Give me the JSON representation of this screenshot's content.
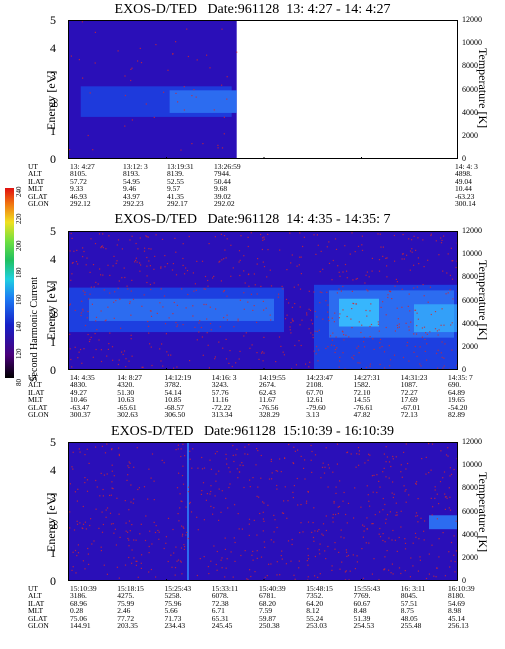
{
  "chart_data": [
    {
      "type": "heatmap",
      "title": "EXOS-D/TED   Date:961128  13: 4:27 - 14: 4:27",
      "ylabel": "Energy [eV]",
      "y2label": "Temperature [K]",
      "ylim": [
        0,
        5
      ],
      "y2lim": [
        0,
        12000
      ],
      "yticks": [
        "0",
        "1",
        "2",
        "3",
        "4",
        "5"
      ],
      "y2ticks": [
        "0",
        "2000",
        "4000",
        "6000",
        "8000",
        "10000",
        "12000"
      ],
      "data_extent_fraction": 0.43,
      "band": {
        "energy_center_eV": 2.1,
        "energy_halfwidth_eV": 0.55
      },
      "table": {
        "row_labels": [
          "UT",
          "ALT",
          "ILAT",
          "MLT",
          "GLAT",
          "GLON"
        ],
        "columns": [
          {
            "UT": "13: 4:27",
            "ALT": "8105.",
            "ILAT": "57.72",
            "MLT": "9.33",
            "GLAT": "46.93",
            "GLON": "292.12"
          },
          {
            "UT": "13:12: 3",
            "ALT": "8193.",
            "ILAT": "54.95",
            "MLT": "9.46",
            "GLAT": "43.97",
            "GLON": "292.23"
          },
          {
            "UT": "13:19:31",
            "ALT": "8139.",
            "ILAT": "52.55",
            "MLT": "9.57",
            "GLAT": "41.35",
            "GLON": "292.17"
          },
          {
            "UT": "13:26:59",
            "ALT": "7944.",
            "ILAT": "50.44",
            "MLT": "9.68",
            "GLAT": "39.02",
            "GLON": "292.02"
          },
          {
            "UT": "14: 4: 3",
            "ALT": "4898.",
            "ILAT": "49.04",
            "MLT": "10.44",
            "GLAT": "-63.23",
            "GLON": "300.14"
          }
        ]
      }
    },
    {
      "type": "heatmap",
      "title": "EXOS-D/TED   Date:961128  14: 4:35 - 14:35: 7",
      "ylabel": "Energy [eV]",
      "y2label": "Temperature [K]",
      "ylim": [
        0,
        5
      ],
      "y2lim": [
        0,
        12000
      ],
      "yticks": [
        "0",
        "1",
        "2",
        "3",
        "4",
        "5"
      ],
      "y2ticks": [
        "0",
        "2000",
        "4000",
        "6000",
        "8000",
        "10000",
        "12000"
      ],
      "colorbar": {
        "label": "Second Harmonic Current",
        "ticks": [
          "80",
          "120",
          "140",
          "160",
          "180",
          "200",
          "220",
          "240"
        ]
      },
      "table": {
        "row_labels": [
          "UT",
          "ALT",
          "ILAT",
          "MLT",
          "GLAT",
          "GLON"
        ],
        "columns": [
          {
            "UT": "14: 4:35",
            "ALT": "4830.",
            "ILAT": "49.27",
            "MLT": "10.46",
            "GLAT": "-63.47",
            "GLON": "300.37"
          },
          {
            "UT": "14: 8:27",
            "ALT": "4320.",
            "ILAT": "51.30",
            "MLT": "10.63",
            "GLAT": "-65.61",
            "GLON": "302.63"
          },
          {
            "UT": "14:12:19",
            "ALT": "3782.",
            "ILAT": "54.14",
            "MLT": "10.85",
            "GLAT": "-68.57",
            "GLON": "306.50"
          },
          {
            "UT": "14:16: 3",
            "ALT": "3243.",
            "ILAT": "57.76",
            "MLT": "11.16",
            "GLAT": "-72.22",
            "GLON": "313.34"
          },
          {
            "UT": "14:19:55",
            "ALT": "2674.",
            "ILAT": "62.43",
            "MLT": "11.67",
            "GLAT": "-76.56",
            "GLON": "328.29"
          },
          {
            "UT": "14:23:47",
            "ALT": "2108.",
            "ILAT": "67.70",
            "MLT": "12.61",
            "GLAT": "-79.60",
            "GLON": "3.13"
          },
          {
            "UT": "14:27:31",
            "ALT": "1582.",
            "ILAT": "72.10",
            "MLT": "14.55",
            "GLAT": "-76.61",
            "GLON": "47.82"
          },
          {
            "UT": "14:31:23",
            "ALT": "1087.",
            "ILAT": "72.27",
            "MLT": "17.69",
            "GLAT": "-67.01",
            "GLON": "72.13"
          },
          {
            "UT": "14:35: 7",
            "ALT": "690.",
            "ILAT": "64.89",
            "MLT": "19.65",
            "GLAT": "-54.20",
            "GLON": "82.89"
          }
        ]
      }
    },
    {
      "type": "heatmap",
      "title": "EXOS-D/TED   Date:961128  15:10:39 - 16:10:39",
      "ylabel": "Energy [eV]",
      "y2label": "Temperature [K]",
      "ylim": [
        0,
        5
      ],
      "y2lim": [
        0,
        12000
      ],
      "yticks": [
        "0",
        "1",
        "2",
        "3",
        "4",
        "5"
      ],
      "y2ticks": [
        "0",
        "2000",
        "4000",
        "6000",
        "8000",
        "10000",
        "12000"
      ],
      "table": {
        "row_labels": [
          "UT",
          "ALT",
          "ILAT",
          "MLT",
          "GLAT",
          "GLON"
        ],
        "columns": [
          {
            "UT": "15:10:39",
            "ALT": "3186.",
            "ILAT": "68.96",
            "MLT": "0.28",
            "GLAT": "75.06",
            "GLON": "144.91"
          },
          {
            "UT": "15:18:15",
            "ALT": "4275.",
            "ILAT": "75.99",
            "MLT": "2.46",
            "GLAT": "77.72",
            "GLON": "203.35"
          },
          {
            "UT": "15:25:43",
            "ALT": "5258.",
            "ILAT": "75.96",
            "MLT": "5.66",
            "GLAT": "71.73",
            "GLON": "234.43"
          },
          {
            "UT": "15:33:11",
            "ALT": "6078.",
            "ILAT": "72.38",
            "MLT": "6.71",
            "GLAT": "65.31",
            "GLON": "245.45"
          },
          {
            "UT": "15:40:39",
            "ALT": "6781.",
            "ILAT": "68.20",
            "MLT": "7.59",
            "GLAT": "59.87",
            "GLON": "250.38"
          },
          {
            "UT": "15:48:15",
            "ALT": "7352.",
            "ILAT": "64.20",
            "MLT": "8.12",
            "GLAT": "55.24",
            "GLON": "253.03"
          },
          {
            "UT": "15:55:43",
            "ALT": "7769.",
            "ILAT": "60.67",
            "MLT": "8.48",
            "GLAT": "51.39",
            "GLON": "254.53"
          },
          {
            "UT": "16: 3:11",
            "ALT": "8045.",
            "ILAT": "57.51",
            "MLT": "8.75",
            "GLAT": "48.05",
            "GLON": "255.48"
          },
          {
            "UT": "16:10:39",
            "ALT": "8180.",
            "ILAT": "54.69",
            "MLT": "8.98",
            "GLAT": "45.14",
            "GLON": "256.13"
          }
        ]
      }
    }
  ],
  "colors": {
    "background": "#2a0fb8",
    "band_low": "#1d3fe0",
    "band_mid": "#2c6cf0",
    "band_high": "#39c3ff",
    "speck": "#d2282d"
  }
}
